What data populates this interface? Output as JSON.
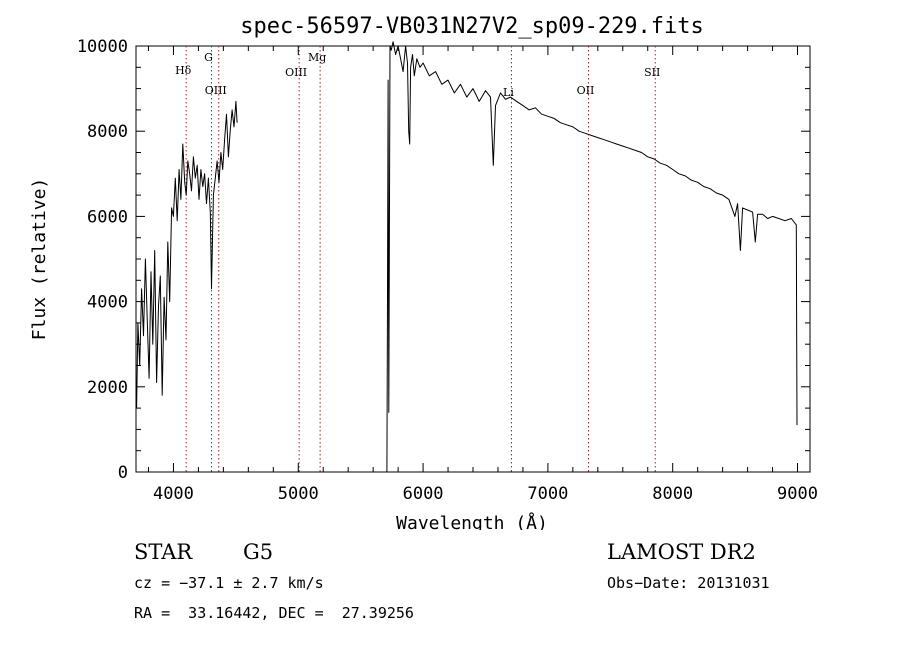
{
  "chart_data": {
    "type": "line",
    "title": "spec-56597-VB031N27V2_sp09-229.fits",
    "xlabel": "Wavelength (Å)",
    "ylabel": "Flux (relative)",
    "xlim": [
      3700,
      9100
    ],
    "ylim": [
      0,
      10000
    ],
    "xticks": [
      4000,
      5000,
      6000,
      7000,
      8000,
      9000
    ],
    "yticks": [
      0,
      2000,
      4000,
      6000,
      8000,
      10000
    ],
    "lines": [
      {
        "label": "Hδ",
        "wavelength": 4102
      },
      {
        "label": "G",
        "wavelength": 4305
      },
      {
        "label": "OIII",
        "wavelength": 4363
      },
      {
        "label": "OIII",
        "wavelength": 5007
      },
      {
        "label": "Mg",
        "wavelength": 5175
      },
      {
        "label": "Li",
        "wavelength": 6708
      },
      {
        "label": "OII",
        "wavelength": 7325
      },
      {
        "label": "SII",
        "wavelength": 7860
      }
    ],
    "gap": [
      4515,
      5705
    ],
    "series": [
      {
        "segments": [
          {
            "x": [
              3705,
              3715,
              3730,
              3745,
              3760,
              3775,
              3790,
              3805,
              3820,
              3835,
              3850,
              3865,
              3880,
              3895,
              3910,
              3925,
              3940,
              3955,
              3970,
              3985,
              4000,
              4015,
              4030,
              4045,
              4060,
              4075,
              4090,
              4102,
              4115,
              4130,
              4145,
              4160,
              4175,
              4190,
              4205,
              4220,
              4235,
              4250,
              4265,
              4280,
              4295,
              4305,
              4320,
              4335,
              4350,
              4365,
              4380,
              4395,
              4410,
              4425,
              4440,
              4455,
              4470,
              4485,
              4500,
              4510
            ],
            "y": [
              1500,
              3500,
              2500,
              4300,
              3200,
              5000,
              3600,
              2200,
              4700,
              3000,
              5200,
              2100,
              3900,
              4600,
              1800,
              4100,
              3100,
              5400,
              4000,
              6200,
              6000,
              6900,
              5900,
              7100,
              6400,
              7700,
              6800,
              6500,
              7300,
              7000,
              6600,
              7400,
              6900,
              7200,
              6400,
              7100,
              6700,
              7000,
              6300,
              6900,
              6100,
              4300,
              6500,
              6900,
              7300,
              6800,
              7500,
              7100,
              7800,
              8400,
              7400,
              8000,
              8500,
              8100,
              8700,
              8200
            ]
          },
          {
            "x": [
              5710,
              5715,
              5720,
              5725,
              5735,
              5745,
              5760,
              5780,
              5800,
              5820,
              5840,
              5860,
              5875,
              5885,
              5893,
              5900,
              5915,
              5930,
              5950,
              5975,
              6000,
              6050,
              6100,
              6150,
              6200,
              6250,
              6300,
              6350,
              6400,
              6450,
              6500,
              6540,
              6563,
              6580,
              6620,
              6660,
              6700,
              6750,
              6800,
              6850,
              6900,
              6950,
              7000,
              7050,
              7100,
              7150,
              7200,
              7250,
              7300,
              7350,
              7400,
              7450,
              7500,
              7550,
              7600,
              7650,
              7700,
              7750,
              7800,
              7850,
              7900,
              7950,
              8000,
              8050,
              8100,
              8150,
              8200,
              8250,
              8300,
              8350,
              8400,
              8450,
              8498,
              8520,
              8542,
              8560,
              8600,
              8640,
              8662,
              8680,
              8720,
              8760,
              8800,
              8850,
              8900,
              8950,
              8990,
              8996
            ],
            "y": [
              0,
              4100,
              9200,
              1400,
              10000,
              9900,
              10100,
              9800,
              10000,
              9700,
              9400,
              10000,
              9600,
              8000,
              7700,
              9500,
              9800,
              9300,
              9700,
              9500,
              9600,
              9300,
              9400,
              9100,
              9200,
              8900,
              9100,
              8800,
              9000,
              8700,
              8950,
              8800,
              7200,
              8600,
              8900,
              8750,
              8800,
              8700,
              8600,
              8500,
              8550,
              8400,
              8350,
              8300,
              8200,
              8150,
              8100,
              8000,
              7950,
              7900,
              7850,
              7800,
              7750,
              7700,
              7650,
              7600,
              7550,
              7500,
              7400,
              7350,
              7250,
              7200,
              7100,
              7000,
              6950,
              6850,
              6800,
              6700,
              6650,
              6550,
              6500,
              6400,
              6000,
              6300,
              5200,
              6200,
              6150,
              6100,
              5400,
              6050,
              6050,
              5950,
              6000,
              5950,
              5900,
              5950,
              5800,
              1100
            ]
          }
        ]
      }
    ]
  },
  "footer": {
    "object_type": "STAR",
    "subclass": "G5",
    "survey": "LAMOST DR2",
    "cz": "cz = −37.1 ± 2.7 km/s",
    "obs_date": "Obs−Date: 20131031",
    "coords": "RA =  33.16442, DEC =  27.39256"
  }
}
